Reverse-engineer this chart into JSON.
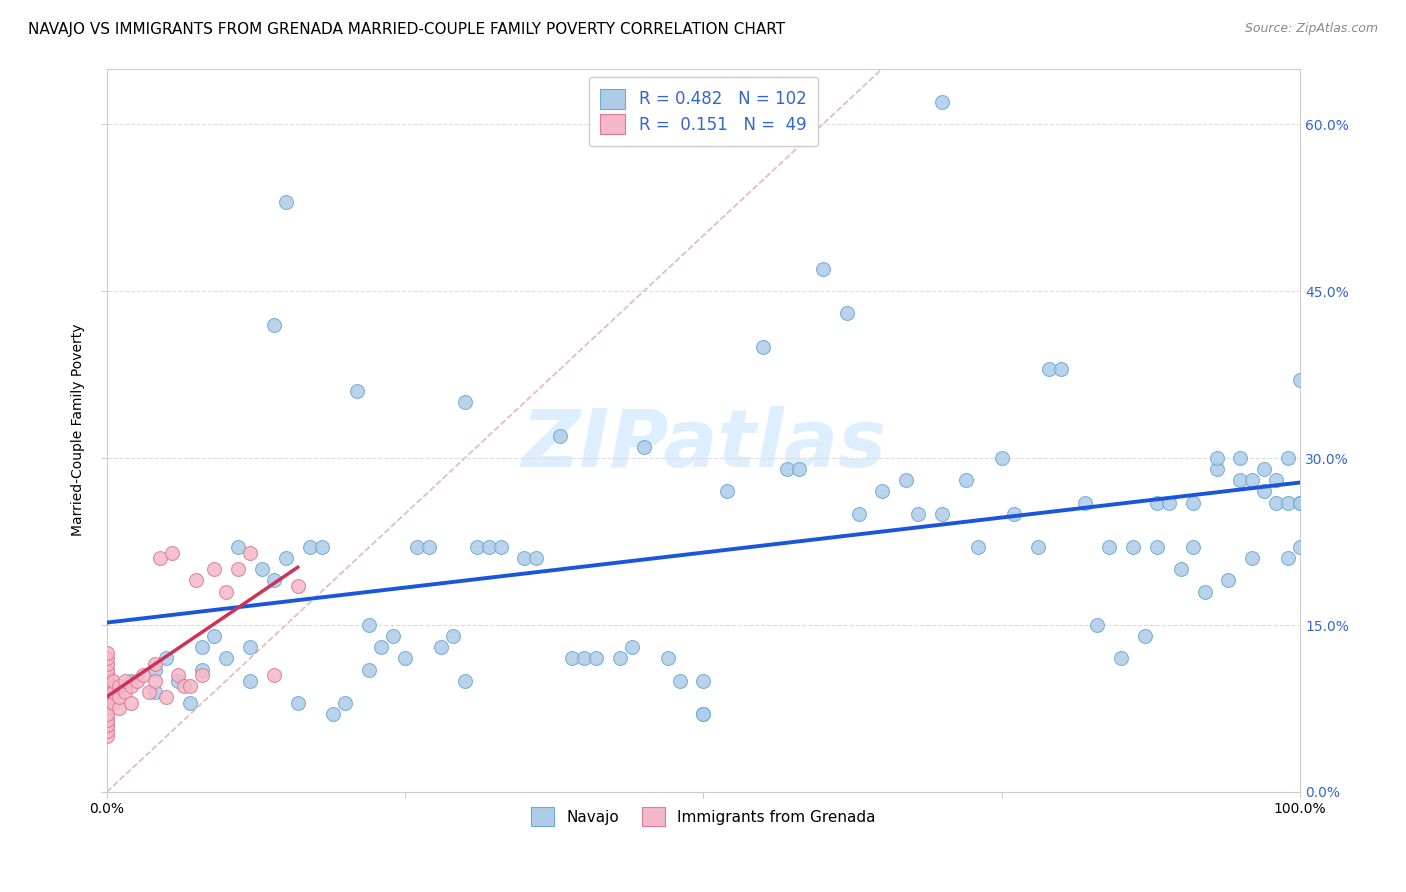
{
  "title": "NAVAJO VS IMMIGRANTS FROM GRENADA MARRIED-COUPLE FAMILY POVERTY CORRELATION CHART",
  "source": "Source: ZipAtlas.com",
  "ylabel": "Married-Couple Family Poverty",
  "xmin": 0.0,
  "xmax": 1.0,
  "ymin": 0.0,
  "ymax": 0.65,
  "yticks_right": [
    0.0,
    0.15,
    0.3,
    0.45,
    0.6
  ],
  "navajo_color": "#aecce8",
  "navajo_edge_color": "#6aaad4",
  "grenada_color": "#f4b8c8",
  "grenada_edge_color": "#e07898",
  "regression_blue_color": "#1a56db",
  "regression_pink_color": "#cc3355",
  "diagonal_color": "#e0b0b8",
  "watermark_text": "ZIPatlas",
  "watermark_color": "#ddeeff",
  "legend_R_navajo": "0.482",
  "legend_N_navajo": "102",
  "legend_R_grenada": "0.151",
  "legend_N_grenada": "49",
  "navajo_x": [
    0.02,
    0.04,
    0.04,
    0.05,
    0.06,
    0.07,
    0.08,
    0.08,
    0.09,
    0.1,
    0.11,
    0.12,
    0.12,
    0.13,
    0.14,
    0.14,
    0.15,
    0.16,
    0.17,
    0.18,
    0.19,
    0.2,
    0.21,
    0.22,
    0.22,
    0.23,
    0.24,
    0.25,
    0.26,
    0.27,
    0.28,
    0.29,
    0.3,
    0.3,
    0.31,
    0.32,
    0.33,
    0.35,
    0.36,
    0.38,
    0.39,
    0.4,
    0.41,
    0.43,
    0.44,
    0.45,
    0.47,
    0.48,
    0.5,
    0.5,
    0.5,
    0.52,
    0.55,
    0.57,
    0.58,
    0.6,
    0.62,
    0.63,
    0.65,
    0.67,
    0.68,
    0.7,
    0.72,
    0.73,
    0.75,
    0.76,
    0.78,
    0.79,
    0.8,
    0.82,
    0.83,
    0.84,
    0.85,
    0.86,
    0.87,
    0.88,
    0.88,
    0.89,
    0.9,
    0.91,
    0.91,
    0.92,
    0.93,
    0.93,
    0.94,
    0.95,
    0.95,
    0.96,
    0.96,
    0.97,
    0.97,
    0.98,
    0.98,
    0.99,
    0.99,
    0.99,
    1.0,
    1.0,
    1.0,
    1.0,
    0.7,
    0.15
  ],
  "navajo_y": [
    0.1,
    0.11,
    0.09,
    0.12,
    0.1,
    0.08,
    0.13,
    0.11,
    0.14,
    0.12,
    0.22,
    0.1,
    0.13,
    0.2,
    0.42,
    0.19,
    0.21,
    0.08,
    0.22,
    0.22,
    0.07,
    0.08,
    0.36,
    0.15,
    0.11,
    0.13,
    0.14,
    0.12,
    0.22,
    0.22,
    0.13,
    0.14,
    0.35,
    0.1,
    0.22,
    0.22,
    0.22,
    0.21,
    0.21,
    0.32,
    0.12,
    0.12,
    0.12,
    0.12,
    0.13,
    0.31,
    0.12,
    0.1,
    0.07,
    0.07,
    0.1,
    0.27,
    0.4,
    0.29,
    0.29,
    0.47,
    0.43,
    0.25,
    0.27,
    0.28,
    0.25,
    0.25,
    0.28,
    0.22,
    0.3,
    0.25,
    0.22,
    0.38,
    0.38,
    0.26,
    0.15,
    0.22,
    0.12,
    0.22,
    0.14,
    0.26,
    0.22,
    0.26,
    0.2,
    0.22,
    0.26,
    0.18,
    0.29,
    0.3,
    0.19,
    0.28,
    0.3,
    0.28,
    0.21,
    0.27,
    0.29,
    0.28,
    0.26,
    0.21,
    0.26,
    0.3,
    0.22,
    0.26,
    0.26,
    0.37,
    0.62,
    0.53
  ],
  "grenada_x": [
    0.0,
    0.0,
    0.0,
    0.0,
    0.0,
    0.0,
    0.0,
    0.0,
    0.0,
    0.0,
    0.0,
    0.0,
    0.0,
    0.0,
    0.0,
    0.0,
    0.0,
    0.0,
    0.0,
    0.0,
    0.005,
    0.005,
    0.005,
    0.01,
    0.01,
    0.01,
    0.015,
    0.015,
    0.02,
    0.02,
    0.025,
    0.03,
    0.035,
    0.04,
    0.04,
    0.045,
    0.05,
    0.055,
    0.06,
    0.065,
    0.07,
    0.075,
    0.08,
    0.09,
    0.1,
    0.11,
    0.12,
    0.14,
    0.16
  ],
  "grenada_y": [
    0.05,
    0.055,
    0.06,
    0.065,
    0.07,
    0.075,
    0.08,
    0.085,
    0.09,
    0.095,
    0.1,
    0.105,
    0.108,
    0.11,
    0.115,
    0.12,
    0.125,
    0.06,
    0.065,
    0.07,
    0.08,
    0.09,
    0.1,
    0.075,
    0.085,
    0.095,
    0.09,
    0.1,
    0.08,
    0.095,
    0.1,
    0.105,
    0.09,
    0.1,
    0.115,
    0.21,
    0.085,
    0.215,
    0.105,
    0.095,
    0.095,
    0.19,
    0.105,
    0.2,
    0.18,
    0.2,
    0.215,
    0.105,
    0.185
  ],
  "background_color": "#ffffff",
  "grid_color": "#dcdcdc",
  "title_fontsize": 11,
  "axis_label_fontsize": 10,
  "tick_fontsize": 10,
  "marker_size": 100
}
